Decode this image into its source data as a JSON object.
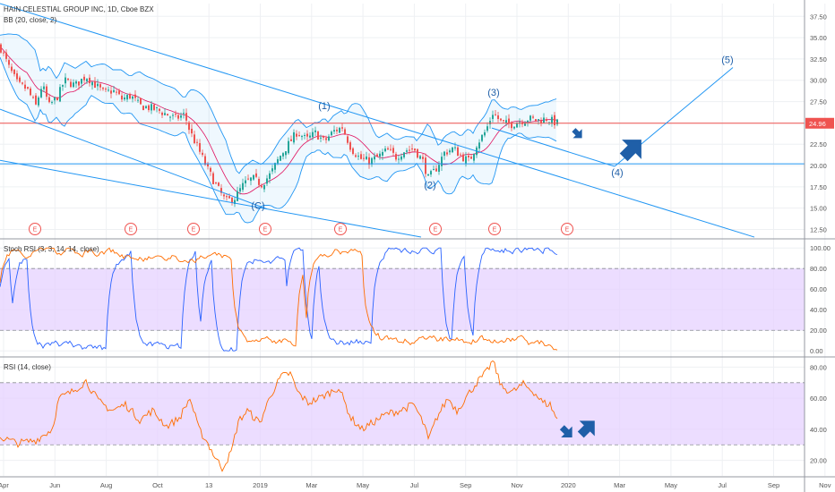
{
  "header": {
    "title": "HAIN CELESTIAL GROUP INC, 1D, Cboe BZX",
    "indicator": "BB (20, close, 2)"
  },
  "price_tag": "24.96",
  "chart_data": [
    {
      "type": "line",
      "panel": "price",
      "title": "HAIN CELESTIAL GROUP INC, 1D, Cboe BZX",
      "yticks": [
        "37.50",
        "35.00",
        "32.50",
        "30.00",
        "27.50",
        "25.00",
        "22.50",
        "20.00",
        "17.50",
        "15.00",
        "12.50"
      ],
      "ylim": [
        11.5,
        39.0
      ],
      "x_labels": [
        "Apr",
        "Jun",
        "Aug",
        "Oct",
        "13",
        "2019",
        "Mar",
        "May",
        "Jul",
        "Sep",
        "Nov",
        "2020",
        "Mar",
        "May",
        "Jul",
        "Sep",
        "Nov"
      ],
      "series": [
        {
          "points": [
            [
              0,
              34.0
            ],
            [
              10,
              31.5
            ],
            [
              20,
              29.5
            ],
            [
              30,
              29.0
            ],
            [
              40,
              27.0
            ],
            [
              47,
              29.5
            ],
            [
              55,
              27.0
            ],
            [
              65,
              28.2
            ],
            [
              72,
              30.0
            ],
            [
              84,
              29.4
            ],
            [
              96,
              30.5
            ],
            [
              106,
              29.5
            ],
            [
              116,
              28.5
            ],
            [
              126,
              28.8
            ],
            [
              136,
              27.8
            ],
            [
              146,
              28.2
            ],
            [
              156,
              27.0
            ],
            [
              166,
              26.8
            ],
            [
              176,
              26.5
            ],
            [
              186,
              26.0
            ],
            [
              196,
              25.5
            ],
            [
              206,
              26.0
            ],
            [
              212,
              24.0
            ],
            [
              222,
              21.8
            ],
            [
              232,
              19.5
            ],
            [
              242,
              17.5
            ],
            [
              252,
              15.8
            ],
            [
              262,
              16.2
            ],
            [
              272,
              17.8
            ],
            [
              282,
              18.5
            ],
            [
              292,
              17.8
            ],
            [
              302,
              19.0
            ],
            [
              312,
              21.0
            ],
            [
              322,
              22.5
            ],
            [
              332,
              24.0
            ],
            [
              342,
              23.0
            ],
            [
              352,
              23.8
            ],
            [
              362,
              22.8
            ],
            [
              372,
              24.0
            ],
            [
              382,
              24.5
            ],
            [
              392,
              22.0
            ],
            [
              402,
              20.8
            ],
            [
              412,
              20.5
            ],
            [
              422,
              21.0
            ],
            [
              432,
              21.8
            ],
            [
              442,
              21.0
            ],
            [
              452,
              21.8
            ],
            [
              462,
              22.0
            ],
            [
              472,
              20.5
            ],
            [
              478,
              18.5
            ],
            [
              486,
              19.5
            ],
            [
              496,
              21.5
            ],
            [
              506,
              22.0
            ],
            [
              516,
              21.0
            ],
            [
              524,
              20.5
            ],
            [
              532,
              22.5
            ],
            [
              542,
              24.0
            ],
            [
              550,
              26.2
            ],
            [
              560,
              25.0
            ],
            [
              570,
              24.8
            ],
            [
              580,
              25.2
            ],
            [
              590,
              25.5
            ],
            [
              600,
              25.3
            ],
            [
              610,
              25.5
            ],
            [
              622,
              24.96
            ]
          ]
        }
      ],
      "annotations": [
        {
          "text": "(1)",
          "x": 362,
          "y": 26.6
        },
        {
          "text": "(2)",
          "x": 480,
          "y": 17.3
        },
        {
          "text": "(3)",
          "x": 551,
          "y": 28.2
        },
        {
          "text": "(4)",
          "x": 689,
          "y": 18.8
        },
        {
          "text": "(5)",
          "x": 812,
          "y": 32.0
        },
        {
          "text": "(C)",
          "x": 288,
          "y": 14.9
        }
      ],
      "trendlines": [
        {
          "from": [
            0,
            39.0
          ],
          "to": [
            842,
            11.6
          ]
        },
        {
          "from": [
            0,
            26.6
          ],
          "to": [
            298,
            14.9
          ]
        },
        {
          "from": [
            0,
            20.6
          ],
          "to": [
            470,
            11.6
          ]
        },
        {
          "from": [
            549,
            24.4
          ],
          "to": [
            686,
            19.9
          ]
        },
        {
          "from": [
            686,
            19.9
          ],
          "to": [
            818,
            31.5
          ]
        }
      ],
      "hlines": [
        {
          "y": 24.96,
          "color": "#ef5350"
        },
        {
          "y": 20.2,
          "color": "#2196f3"
        }
      ],
      "earnings_markers": {
        "label": "E",
        "x": [
          39,
          146,
          216,
          296,
          380,
          486,
          552,
          633
        ]
      },
      "arrows": [
        {
          "x": 645,
          "y": 23.7,
          "dir": "down-right"
        },
        {
          "x": 706,
          "y": 22.0,
          "dir": "up-right"
        }
      ]
    },
    {
      "type": "line",
      "panel": "stoch_rsi",
      "title": "Stoch RSI (3, 3, 14, 14, close)",
      "yticks": [
        "100.00",
        "80.00",
        "60.00",
        "40.00",
        "20.00",
        "0.00"
      ],
      "ylim": [
        -5,
        108
      ],
      "band": [
        20,
        80
      ],
      "series": [
        {
          "name": "K",
          "color": "#2962ff",
          "seed": 17
        },
        {
          "name": "D",
          "color": "#ff6d00",
          "seed": 41
        }
      ]
    },
    {
      "type": "line",
      "panel": "rsi",
      "title": "RSI (14, close)",
      "yticks": [
        "80.00",
        "60.00",
        "40.00",
        "20.00"
      ],
      "ylim": [
        10,
        86
      ],
      "band": [
        30,
        70
      ],
      "series": [
        {
          "color": "#ff6d00",
          "points": [
            [
              0,
              35
            ],
            [
              20,
              31
            ],
            [
              40,
              33
            ],
            [
              58,
              40
            ],
            [
              66,
              60
            ],
            [
              80,
              64
            ],
            [
              96,
              71
            ],
            [
              110,
              58
            ],
            [
              125,
              52
            ],
            [
              140,
              56
            ],
            [
              156,
              46
            ],
            [
              170,
              52
            ],
            [
              186,
              42
            ],
            [
              200,
              47
            ],
            [
              212,
              60
            ],
            [
              222,
              40
            ],
            [
              232,
              31
            ],
            [
              240,
              22
            ],
            [
              248,
              15
            ],
            [
              258,
              25
            ],
            [
              266,
              45
            ],
            [
              276,
              52
            ],
            [
              290,
              44
            ],
            [
              302,
              62
            ],
            [
              314,
              74
            ],
            [
              324,
              76
            ],
            [
              332,
              64
            ],
            [
              344,
              57
            ],
            [
              360,
              61
            ],
            [
              378,
              67
            ],
            [
              392,
              47
            ],
            [
              404,
              40
            ],
            [
              418,
              45
            ],
            [
              432,
              50
            ],
            [
              446,
              52
            ],
            [
              462,
              56
            ],
            [
              474,
              42
            ],
            [
              478,
              33
            ],
            [
              488,
              48
            ],
            [
              500,
              60
            ],
            [
              510,
              52
            ],
            [
              522,
              62
            ],
            [
              532,
              70
            ],
            [
              542,
              76
            ],
            [
              550,
              84
            ],
            [
              560,
              67
            ],
            [
              572,
              64
            ],
            [
              584,
              69
            ],
            [
              596,
              64
            ],
            [
              606,
              57
            ],
            [
              614,
              56
            ],
            [
              622,
              46
            ]
          ]
        }
      ],
      "arrows": [
        {
          "x": 633,
          "y": 38,
          "dir": "down-right"
        },
        {
          "x": 656,
          "y": 41,
          "dir": "up-right"
        }
      ]
    }
  ],
  "colors": {
    "up": "#26a69a",
    "down": "#ef5350",
    "bb_band": "#2196f3",
    "bb_basis": "#e0115f",
    "band_fill": "#e6d2ff",
    "label_blue": "#1f5fa8"
  }
}
